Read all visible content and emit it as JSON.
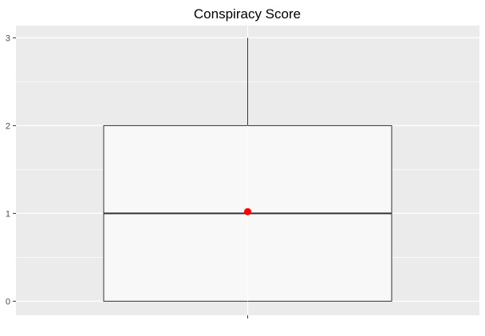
{
  "chart_data": {
    "type": "boxplot",
    "title": "Conspiracy Score",
    "xlabel": "",
    "ylabel": "",
    "ylim": [
      -0.16,
      3.14
    ],
    "y_ticks": [
      0,
      1,
      2,
      3
    ],
    "y_tick_labels": [
      "0",
      "1",
      "2",
      "3"
    ],
    "grid": true,
    "legend": "none",
    "box": {
      "min": 0,
      "q1": 0,
      "median": 1,
      "q3": 2,
      "max": 3,
      "mean": 1.02
    },
    "colors": {
      "panel": "#ebebeb",
      "grid": "#ffffff",
      "box_fill": "#f8f8f8",
      "box_stroke": "#333333",
      "mean_point": "#ff0000"
    }
  }
}
